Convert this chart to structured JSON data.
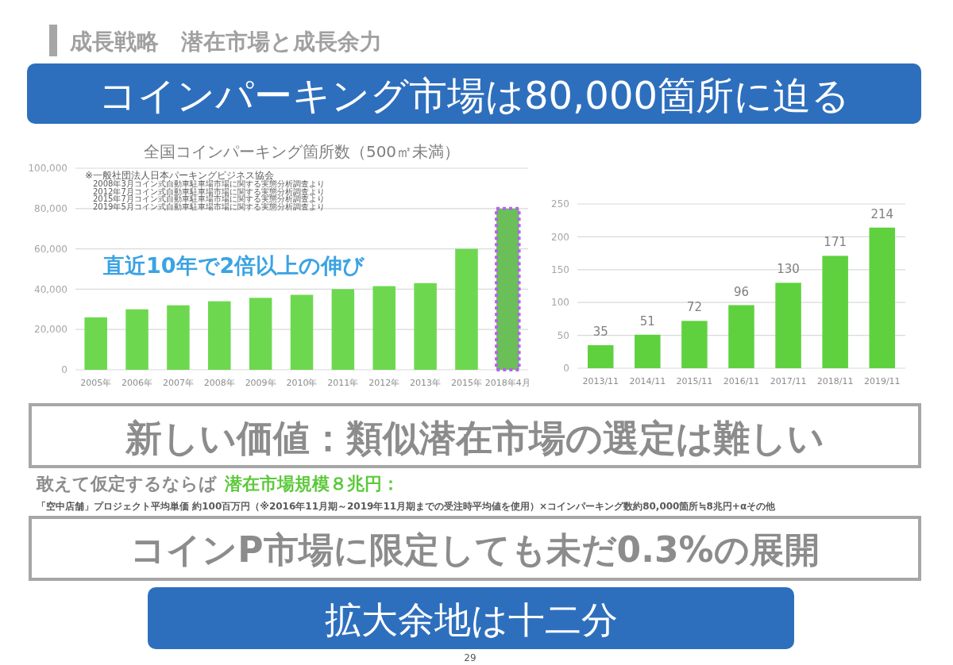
{
  "chart_data": [
    {
      "type": "other",
      "title": "成長戦略　潜在市場と成長余力",
      "annotations": [
        "コインパーキング市場は80,000箇所に迫る",
        "新しい価値：類似潜在市場の選定は難しい",
        "敢えて仮定するならば",
        "潜在市場規模８兆円：",
        "「空中店舗」プロジェクト平均単価 約100百万円（※2016年11月期～2019年11月期までの受注時平均値を使用）×コインパーキング数約80,000箇所≒8兆円+αその他",
        "コインP市場に限定しても未だ0.3%の展開",
        "拡大余地は十二分",
        "29"
      ]
    },
    {
      "type": "bar",
      "title": "全国コインパーキング箇所数（500㎡未満）",
      "categories": [
        "2005年",
        "2006年",
        "2007年",
        "2008年",
        "2009年",
        "2010年",
        "2011年",
        "2012年",
        "2013年",
        "2015年",
        "2018年4月"
      ],
      "values": [
        26000,
        30000,
        32000,
        34000,
        35700,
        37200,
        40000,
        41500,
        43000,
        60000,
        80000
      ],
      "colors": [
        "#6dd84f",
        "#6dd84f",
        "#6dd84f",
        "#6dd84f",
        "#6dd84f",
        "#6dd84f",
        "#6dd84f",
        "#6dd84f",
        "#6dd84f",
        "#6dd84f",
        "#6abf59"
      ],
      "ylim": [
        0,
        100000
      ],
      "yticks": [
        {
          "value": 0,
          "label": "0"
        },
        {
          "value": 20000,
          "label": "20,000"
        },
        {
          "value": 40000,
          "label": "40,000"
        },
        {
          "value": 60000,
          "label": "60,000"
        },
        {
          "value": 80000,
          "label": "80,000"
        },
        {
          "value": 100000,
          "label": "100,000"
        }
      ],
      "grid": "y",
      "annotations": [
        "※一般社団法人日本パーキングビジネス協会",
        "2008年3月コイン式自動車駐車場市場に関する実態分析調査より",
        "2012年7月コイン式自動車駐車場市場に関する実態分析調査より",
        "2015年7月コイン式自動車駐車場市場に関する実態分析調査より",
        "2019年5月コイン式自動車駐車場市場に関する実態分析調査より",
        "直近10年で2倍以上の伸び"
      ]
    },
    {
      "type": "bar",
      "categories": [
        "2013/11",
        "2014/11",
        "2015/11",
        "2016/11",
        "2017/11",
        "2018/11",
        "2019/11"
      ],
      "values": [
        35,
        51,
        72,
        96,
        130,
        171,
        214
      ],
      "color": "#5fd13f",
      "ylim": [
        0,
        250
      ],
      "yticks": [
        0,
        50,
        100,
        150,
        200,
        250
      ],
      "grid": "y",
      "data_labels": true
    }
  ]
}
